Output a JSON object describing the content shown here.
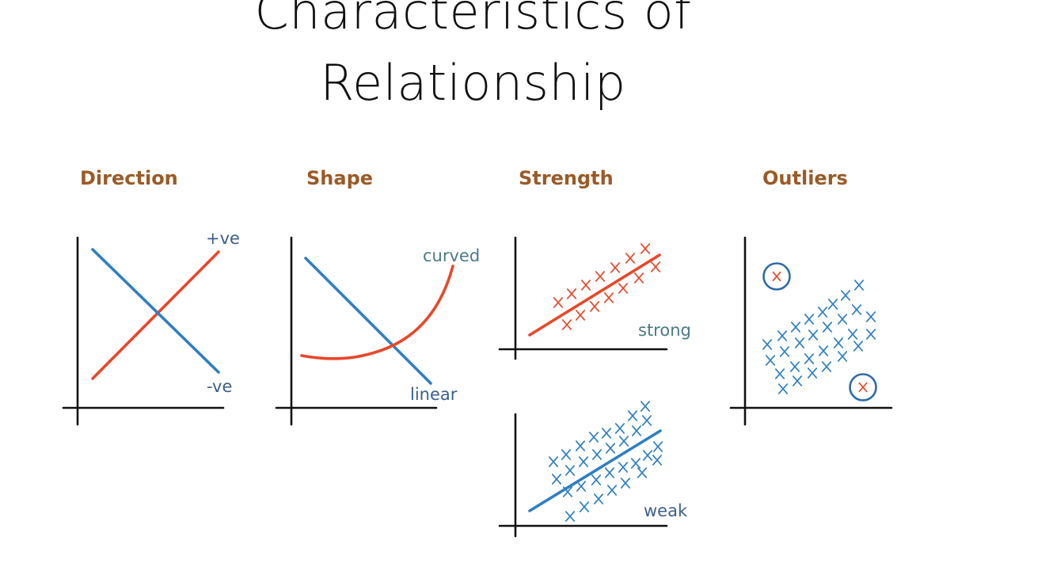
{
  "title": {
    "line1": "Characteristics of",
    "line2": "Relationship"
  },
  "sections": {
    "direction": {
      "label": "Direction",
      "positive_label": "+ve",
      "negative_label": "-ve"
    },
    "shape": {
      "label": "Shape",
      "curved_label": "curved",
      "linear_label": "linear"
    },
    "strength": {
      "label": "Strength",
      "strong_label": "strong",
      "weak_label": "weak"
    },
    "outliers": {
      "label": "Outliers"
    }
  },
  "colors": {
    "red": "#e8472a",
    "blue": "#2f7fc1",
    "heading": "#9b5a26",
    "annotation_teal": "#4a7a86",
    "annotation_navy": "#3a5f8e",
    "circle": "#2d6ca8"
  },
  "marks": {
    "cross_glyph": "x",
    "data_marker": "cross",
    "outlier_marker": "circled-cross"
  }
}
